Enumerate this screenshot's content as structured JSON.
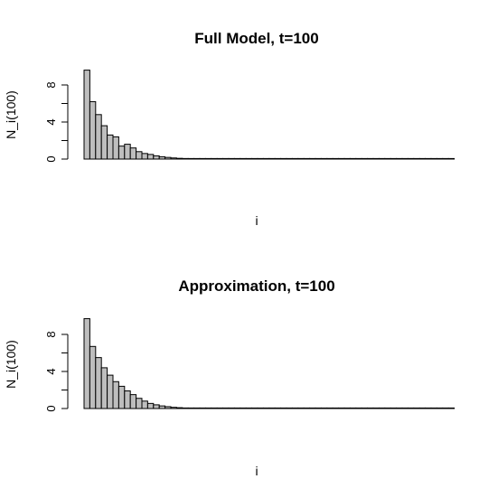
{
  "chart_data": [
    {
      "type": "bar",
      "title": "Full Model, t=100",
      "xlabel": "i",
      "ylabel": "N_i(100)",
      "ylim": [
        0,
        10
      ],
      "yticks": [
        0,
        2,
        4,
        6,
        8
      ],
      "ytick_labels": [
        "0",
        "",
        "4",
        "",
        "8"
      ],
      "grid": false,
      "values": [
        9.6,
        6.2,
        4.8,
        3.6,
        2.6,
        2.4,
        1.4,
        1.6,
        1.2,
        0.8,
        0.6,
        0.5,
        0.35,
        0.25,
        0.18,
        0.12,
        0.08,
        0.06,
        0.04,
        0.03,
        0.02,
        0.015,
        0.01,
        0.008,
        0.005,
        0.004,
        0.003,
        0.002,
        0.002,
        0.001,
        0.001,
        0.001,
        0.001,
        0.001,
        0.001,
        0.001,
        0.001,
        0.001,
        0.001,
        0.001,
        0.001,
        0.001,
        0.001,
        0.001,
        0.001,
        0.001,
        0.001,
        0.001,
        0.001,
        0.001,
        0.001,
        0.001,
        0.001,
        0.001,
        0.001,
        0.001,
        0.001,
        0.001,
        0.001,
        0.001,
        0.001,
        0.001,
        0.001,
        0.001
      ]
    },
    {
      "type": "bar",
      "title": "Approximation, t=100",
      "xlabel": "i",
      "ylabel": "N_i(100)",
      "ylim": [
        0,
        10
      ],
      "yticks": [
        0,
        2,
        4,
        6,
        8
      ],
      "ytick_labels": [
        "0",
        "",
        "4",
        "",
        "8"
      ],
      "grid": false,
      "values": [
        9.7,
        6.7,
        5.5,
        4.4,
        3.6,
        2.9,
        2.4,
        1.9,
        1.5,
        1.1,
        0.8,
        0.55,
        0.4,
        0.28,
        0.2,
        0.13,
        0.09,
        0.06,
        0.04,
        0.03,
        0.02,
        0.015,
        0.01,
        0.008,
        0.005,
        0.004,
        0.003,
        0.002,
        0.002,
        0.001,
        0.001,
        0.001,
        0.001,
        0.001,
        0.001,
        0.001,
        0.001,
        0.001,
        0.001,
        0.001,
        0.001,
        0.001,
        0.001,
        0.001,
        0.001,
        0.001,
        0.001,
        0.001,
        0.001,
        0.001,
        0.001,
        0.001,
        0.001,
        0.001,
        0.001,
        0.001,
        0.001,
        0.001,
        0.001,
        0.001,
        0.001,
        0.001,
        0.001,
        0.001
      ]
    }
  ]
}
